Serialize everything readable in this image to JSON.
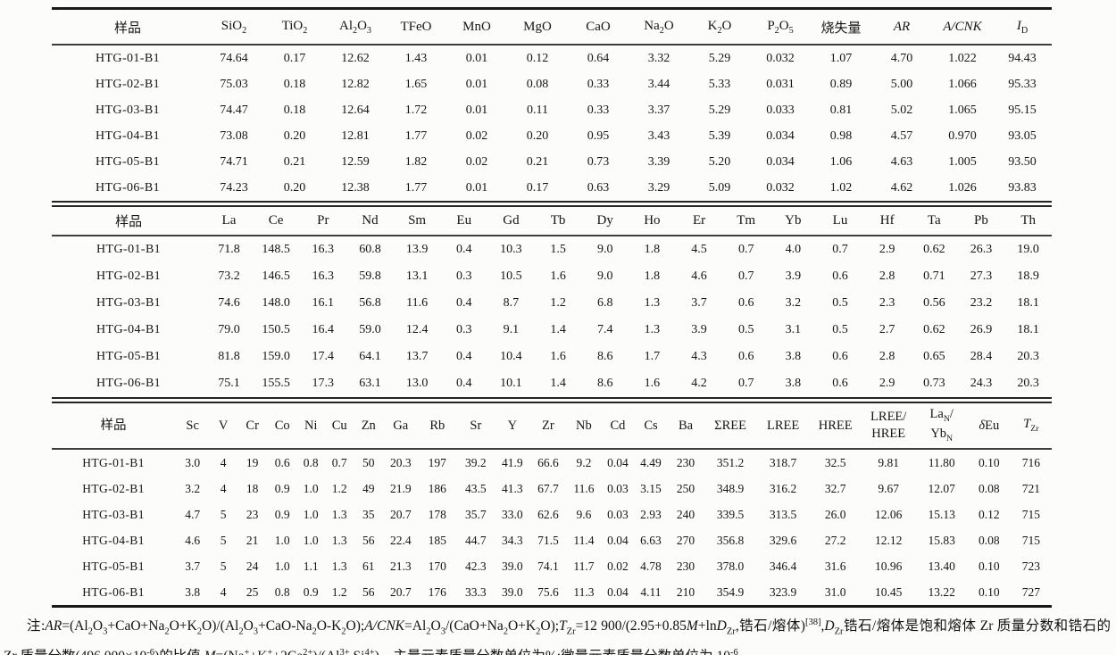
{
  "tables": [
    {
      "name": "major-elements",
      "columns": [
        "样品",
        "SiO~2~",
        "TiO~2~",
        "Al~2~O~3~",
        "TFeO",
        "MnO",
        "MgO",
        "CaO",
        "Na~2~O",
        "K~2~O",
        "P~2~O~5~",
        "烧失量",
        "*AR*",
        "*A/CNK*",
        "*I*~D~"
      ],
      "rows": [
        {
          "sample": "HTG-01-B1",
          "values": [
            "74.64",
            "0.17",
            "12.62",
            "1.43",
            "0.01",
            "0.12",
            "0.64",
            "3.32",
            "5.29",
            "0.032",
            "1.07",
            "4.70",
            "1.022",
            "94.43"
          ]
        },
        {
          "sample": "HTG-02-B1",
          "values": [
            "75.03",
            "0.18",
            "12.82",
            "1.65",
            "0.01",
            "0.08",
            "0.33",
            "3.44",
            "5.33",
            "0.031",
            "0.89",
            "5.00",
            "1.066",
            "95.33"
          ]
        },
        {
          "sample": "HTG-03-B1",
          "values": [
            "74.47",
            "0.18",
            "12.64",
            "1.72",
            "0.01",
            "0.11",
            "0.33",
            "3.37",
            "5.29",
            "0.033",
            "0.81",
            "5.02",
            "1.065",
            "95.15"
          ]
        },
        {
          "sample": "HTG-04-B1",
          "values": [
            "73.08",
            "0.20",
            "12.81",
            "1.77",
            "0.02",
            "0.20",
            "0.95",
            "3.43",
            "5.39",
            "0.034",
            "0.98",
            "4.57",
            "0.970",
            "93.05"
          ]
        },
        {
          "sample": "HTG-05-B1",
          "values": [
            "74.71",
            "0.21",
            "12.59",
            "1.82",
            "0.02",
            "0.21",
            "0.73",
            "3.39",
            "5.20",
            "0.034",
            "1.06",
            "4.63",
            "1.005",
            "93.50"
          ]
        },
        {
          "sample": "HTG-06-B1",
          "values": [
            "74.23",
            "0.20",
            "12.38",
            "1.77",
            "0.01",
            "0.17",
            "0.63",
            "3.29",
            "5.09",
            "0.032",
            "1.02",
            "4.62",
            "1.026",
            "93.83"
          ]
        }
      ]
    },
    {
      "name": "rare-earth-elements",
      "columns": [
        "样品",
        "La",
        "Ce",
        "Pr",
        "Nd",
        "Sm",
        "Eu",
        "Gd",
        "Tb",
        "Dy",
        "Ho",
        "Er",
        "Tm",
        "Yb",
        "Lu",
        "Hf",
        "Ta",
        "Pb",
        "Th"
      ],
      "rows": [
        {
          "sample": "HTG-01-B1",
          "values": [
            "71.8",
            "148.5",
            "16.3",
            "60.8",
            "13.9",
            "0.4",
            "10.3",
            "1.5",
            "9.0",
            "1.8",
            "4.5",
            "0.7",
            "4.0",
            "0.7",
            "2.9",
            "0.62",
            "26.3",
            "19.0"
          ]
        },
        {
          "sample": "HTG-02-B1",
          "values": [
            "73.2",
            "146.5",
            "16.3",
            "59.8",
            "13.1",
            "0.3",
            "10.5",
            "1.6",
            "9.0",
            "1.8",
            "4.6",
            "0.7",
            "3.9",
            "0.6",
            "2.8",
            "0.71",
            "27.3",
            "18.9"
          ]
        },
        {
          "sample": "HTG-03-B1",
          "values": [
            "74.6",
            "148.0",
            "16.1",
            "56.8",
            "11.6",
            "0.4",
            "8.7",
            "1.2",
            "6.8",
            "1.3",
            "3.7",
            "0.6",
            "3.2",
            "0.5",
            "2.3",
            "0.56",
            "23.2",
            "18.1"
          ]
        },
        {
          "sample": "HTG-04-B1",
          "values": [
            "79.0",
            "150.5",
            "16.4",
            "59.0",
            "12.4",
            "0.3",
            "9.1",
            "1.4",
            "7.4",
            "1.3",
            "3.9",
            "0.5",
            "3.1",
            "0.5",
            "2.7",
            "0.62",
            "26.9",
            "18.1"
          ]
        },
        {
          "sample": "HTG-05-B1",
          "values": [
            "81.8",
            "159.0",
            "17.4",
            "64.1",
            "13.7",
            "0.4",
            "10.4",
            "1.6",
            "8.6",
            "1.7",
            "4.3",
            "0.6",
            "3.8",
            "0.6",
            "2.8",
            "0.65",
            "28.4",
            "20.3"
          ]
        },
        {
          "sample": "HTG-06-B1",
          "values": [
            "75.1",
            "155.5",
            "17.3",
            "63.1",
            "13.0",
            "0.4",
            "10.1",
            "1.4",
            "8.6",
            "1.6",
            "4.2",
            "0.7",
            "3.8",
            "0.6",
            "2.9",
            "0.73",
            "24.3",
            "20.3"
          ]
        }
      ]
    },
    {
      "name": "trace-elements",
      "columns": [
        "样品",
        "Sc",
        "V",
        "Cr",
        "Co",
        "Ni",
        "Cu",
        "Zn",
        "Ga",
        "Rb",
        "Sr",
        "Y",
        "Zr",
        "Nb",
        "Cd",
        "Cs",
        "Ba",
        "ΣREE",
        "LREE",
        "HREE",
        "LREE/|HREE",
        "La~N~/|Yb~N~",
        "*δ*Eu",
        "*T*~Zr~"
      ],
      "rows": [
        {
          "sample": "HTG-01-B1",
          "values": [
            "3.0",
            "4",
            "19",
            "0.6",
            "0.8",
            "0.7",
            "50",
            "20.3",
            "197",
            "39.2",
            "41.9",
            "66.6",
            "9.2",
            "0.04",
            "4.49",
            "230",
            "351.2",
            "318.7",
            "32.5",
            "9.81",
            "11.80",
            "0.10",
            "716"
          ]
        },
        {
          "sample": "HTG-02-B1",
          "values": [
            "3.2",
            "4",
            "18",
            "0.9",
            "1.0",
            "1.2",
            "49",
            "21.9",
            "186",
            "43.5",
            "41.3",
            "67.7",
            "11.6",
            "0.03",
            "3.15",
            "250",
            "348.9",
            "316.2",
            "32.7",
            "9.67",
            "12.07",
            "0.08",
            "721"
          ]
        },
        {
          "sample": "HTG-03-B1",
          "values": [
            "4.7",
            "5",
            "23",
            "0.9",
            "1.0",
            "1.3",
            "35",
            "20.7",
            "178",
            "35.7",
            "33.0",
            "62.6",
            "9.6",
            "0.03",
            "2.93",
            "240",
            "339.5",
            "313.5",
            "26.0",
            "12.06",
            "15.13",
            "0.12",
            "715"
          ]
        },
        {
          "sample": "HTG-04-B1",
          "values": [
            "4.6",
            "5",
            "21",
            "1.0",
            "1.0",
            "1.3",
            "56",
            "22.4",
            "185",
            "44.7",
            "34.3",
            "71.5",
            "11.4",
            "0.04",
            "6.63",
            "270",
            "356.8",
            "329.6",
            "27.2",
            "12.12",
            "15.83",
            "0.08",
            "715"
          ]
        },
        {
          "sample": "HTG-05-B1",
          "values": [
            "3.7",
            "5",
            "24",
            "1.0",
            "1.1",
            "1.3",
            "61",
            "21.3",
            "170",
            "42.3",
            "39.0",
            "74.1",
            "11.7",
            "0.02",
            "4.78",
            "230",
            "378.0",
            "346.4",
            "31.6",
            "10.96",
            "13.40",
            "0.10",
            "723"
          ]
        },
        {
          "sample": "HTG-06-B1",
          "values": [
            "3.8",
            "4",
            "25",
            "0.8",
            "0.9",
            "1.2",
            "56",
            "20.7",
            "176",
            "33.3",
            "39.0",
            "75.6",
            "11.3",
            "0.04",
            "4.11",
            "210",
            "354.9",
            "323.9",
            "31.0",
            "10.45",
            "13.22",
            "0.10",
            "727"
          ]
        }
      ]
    }
  ],
  "footnote": "注:*AR*=(Al~2~O~3~+CaO+Na~2~O+K~2~O)/(Al~2~O~3~+CaO-Na~2~O-K~2~O);*A/CNK*=Al~2~O~3~/(CaO+Na~2~O+K~2~O);*T*~Zr~=12 900/(2.95+0.85*M*+ln*D*~Zr~,锆石/熔体)^[38]^,*D*~Zr~锆石/熔体是饱和熔体 Zr 质量分数和锆石的 Zr 质量分数(496 000×10^-6^)的比值,*M*=(Na^+^+K^+^+2Ca^2+^)/(Al^3+^ Si^4+^)。主量元素质量分数单位为%;微量元素质量分数单位为 10^-6^。"
}
